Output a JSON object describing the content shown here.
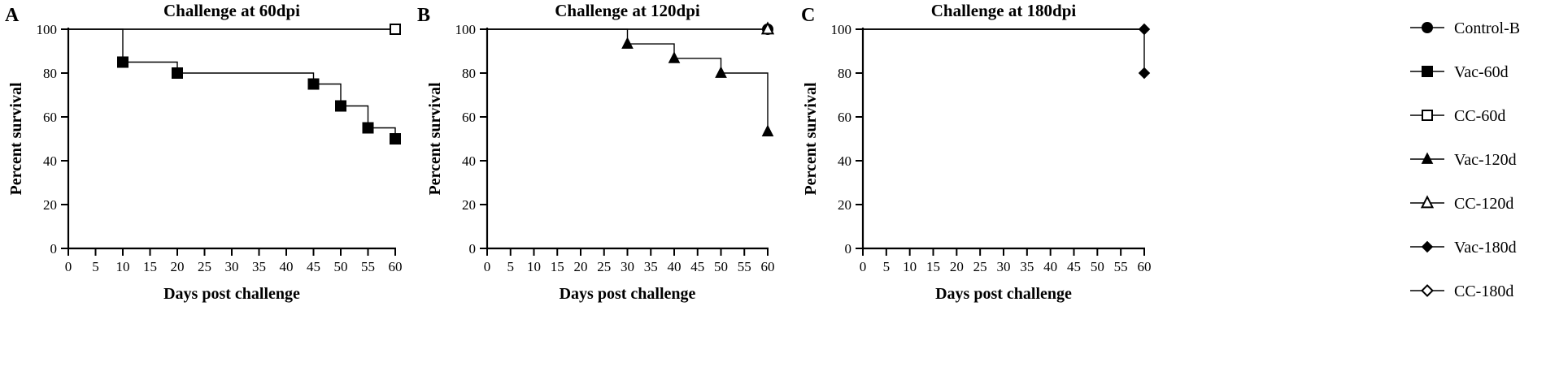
{
  "chart_data": [
    {
      "type": "line",
      "panel": "A",
      "title": "Challenge at 60dpi",
      "xlabel": "Days post challenge",
      "ylabel": "Percent survival",
      "xlim": [
        0,
        60
      ],
      "ylim": [
        0,
        100
      ],
      "xticks": [
        0,
        5,
        10,
        15,
        20,
        25,
        30,
        35,
        40,
        45,
        50,
        55,
        60
      ],
      "yticks": [
        0,
        20,
        40,
        60,
        80,
        100
      ],
      "step": true,
      "series": [
        {
          "name": "Control-B",
          "marker": "circle-filled",
          "x": [
            0,
            60
          ],
          "y": [
            100,
            100
          ],
          "markers_x": [],
          "markers_y": []
        },
        {
          "name": "Vac-60d",
          "marker": "square-filled",
          "x": [
            0,
            10,
            20,
            45,
            50,
            55,
            60
          ],
          "y": [
            100,
            85,
            80,
            75,
            65,
            55,
            50
          ],
          "markers_x": [
            10,
            20,
            45,
            50,
            55,
            60
          ],
          "markers_y": [
            85,
            80,
            75,
            65,
            55,
            50
          ]
        },
        {
          "name": "CC-60d",
          "marker": "square-open",
          "x": [
            0,
            60
          ],
          "y": [
            100,
            100
          ],
          "markers_x": [
            60
          ],
          "markers_y": [
            100
          ]
        }
      ]
    },
    {
      "type": "line",
      "panel": "B",
      "title": "Challenge at 120dpi",
      "xlabel": "Days post challenge",
      "ylabel": "Percent survival",
      "xlim": [
        0,
        60
      ],
      "ylim": [
        0,
        100
      ],
      "xticks": [
        0,
        5,
        10,
        15,
        20,
        25,
        30,
        35,
        40,
        45,
        50,
        55,
        60
      ],
      "yticks": [
        0,
        20,
        40,
        60,
        80,
        100
      ],
      "step": true,
      "series": [
        {
          "name": "Control-B",
          "marker": "circle-filled",
          "x": [
            0,
            60
          ],
          "y": [
            100,
            100
          ],
          "markers_x": [
            60
          ],
          "markers_y": [
            100
          ]
        },
        {
          "name": "Vac-120d",
          "marker": "triangle-filled",
          "x": [
            0,
            30,
            40,
            50,
            60
          ],
          "y": [
            100,
            93.3,
            86.7,
            80,
            53.3
          ],
          "markers_x": [
            30,
            40,
            50,
            60
          ],
          "markers_y": [
            93.3,
            86.7,
            80,
            53.3
          ]
        },
        {
          "name": "CC-120d",
          "marker": "triangle-open",
          "x": [
            0,
            60
          ],
          "y": [
            100,
            100
          ],
          "markers_x": [
            60
          ],
          "markers_y": [
            100
          ]
        }
      ]
    },
    {
      "type": "line",
      "panel": "C",
      "title": "Challenge at 180dpi",
      "xlabel": "Days post challenge",
      "ylabel": "Percent survival",
      "xlim": [
        0,
        60
      ],
      "ylim": [
        0,
        100
      ],
      "xticks": [
        0,
        5,
        10,
        15,
        20,
        25,
        30,
        35,
        40,
        45,
        50,
        55,
        60
      ],
      "yticks": [
        0,
        20,
        40,
        60,
        80,
        100
      ],
      "step": true,
      "series": [
        {
          "name": "Control-B",
          "marker": "circle-filled",
          "x": [
            0,
            60
          ],
          "y": [
            100,
            100
          ],
          "markers_x": [],
          "markers_y": []
        },
        {
          "name": "Vac-180d",
          "marker": "diamond-filled",
          "x": [
            0,
            60,
            60
          ],
          "y": [
            100,
            100,
            80
          ],
          "markers_x": [
            60,
            60
          ],
          "markers_y": [
            100,
            80
          ]
        },
        {
          "name": "CC-180d",
          "marker": "diamond-open",
          "x": [
            0,
            60
          ],
          "y": [
            100,
            100
          ],
          "markers_x": [],
          "markers_y": []
        }
      ]
    }
  ],
  "legend": {
    "placement": "right",
    "entries": [
      {
        "label": "Control-B",
        "marker": "circle-filled"
      },
      {
        "label": "Vac-60d",
        "marker": "square-filled"
      },
      {
        "label": "CC-60d",
        "marker": "square-open"
      },
      {
        "label": "Vac-120d",
        "marker": "triangle-filled"
      },
      {
        "label": "CC-120d",
        "marker": "triangle-open"
      },
      {
        "label": "Vac-180d",
        "marker": "diamond-filled"
      },
      {
        "label": "CC-180d",
        "marker": "diamond-open"
      }
    ]
  }
}
